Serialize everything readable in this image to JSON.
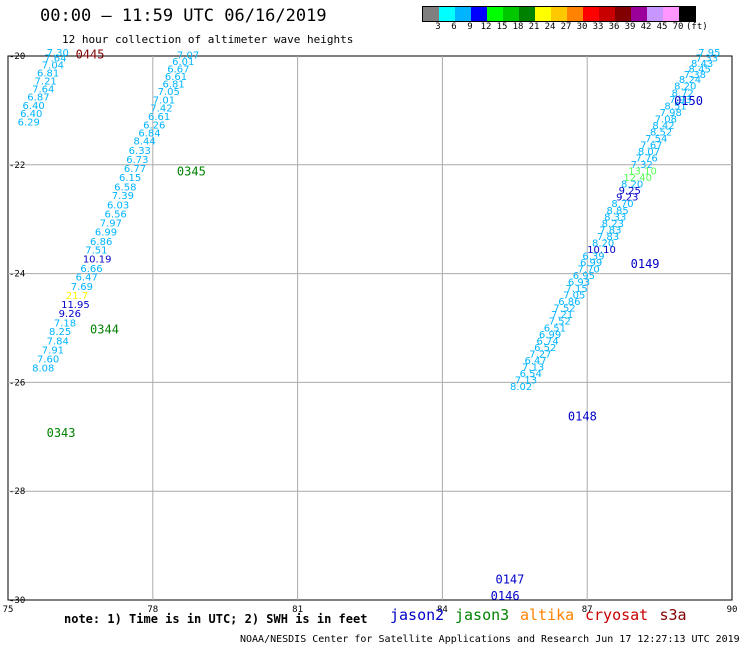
{
  "header": {
    "title": "00:00 – 11:59 UTC 06/16/2019",
    "subtitle": "12 hour collection of altimeter wave heights"
  },
  "legend": {
    "colors": [
      "#7f7f7f",
      "#00ffff",
      "#00b4ff",
      "#0000ff",
      "#00ff00",
      "#00c800",
      "#008200",
      "#ffff00",
      "#ffc800",
      "#ff8200",
      "#ff0000",
      "#c80000",
      "#820000",
      "#9b009b",
      "#c896ff",
      "#ff96ff",
      "#000000"
    ],
    "labels": [
      "3",
      "6",
      "9",
      "12",
      "15",
      "18",
      "21",
      "24",
      "27",
      "30",
      "33",
      "36",
      "39",
      "42",
      "45",
      "70",
      "(ft)"
    ]
  },
  "map": {
    "lon_range": [
      75,
      90
    ],
    "lat_range": [
      -30,
      -20
    ],
    "x_ticks": [
      "75",
      "78",
      "81",
      "84",
      "87",
      "90"
    ],
    "y_ticks": [
      "-20",
      "-22",
      "-24",
      "-26",
      "-28",
      "-30"
    ],
    "time_labels": [
      {
        "text": "0445",
        "lon": 76.4,
        "lat": -20.05,
        "color": "#800000"
      },
      {
        "text": "0345",
        "lon": 78.5,
        "lat": -22.2,
        "color": "#008200"
      },
      {
        "text": "0344",
        "lon": 76.7,
        "lat": -25.1,
        "color": "#008200"
      },
      {
        "text": "0343",
        "lon": 75.8,
        "lat": -27.0,
        "color": "#008200"
      },
      {
        "text": "0150",
        "lon": 88.8,
        "lat": -20.9,
        "color": "#0000c8"
      },
      {
        "text": "0149",
        "lon": 87.9,
        "lat": -23.9,
        "color": "#0000c8"
      },
      {
        "text": "0148",
        "lon": 86.6,
        "lat": -26.7,
        "color": "#0000c8"
      },
      {
        "text": "0147",
        "lon": 85.1,
        "lat": -29.7,
        "color": "#0000c8"
      },
      {
        "text": "0146",
        "lon": 85.0,
        "lat": -30.0,
        "color": "#0000c8"
      }
    ],
    "tracks": [
      {
        "points": [
          {
            "v": "7.30",
            "lon": 75.8,
            "lat": -20.0,
            "c": "#00b4ff"
          },
          {
            "v": "7.64",
            "lon": 75.75,
            "lat": -20.1,
            "c": "#00b4ff"
          },
          {
            "v": "7.04",
            "lon": 75.7,
            "lat": -20.23,
            "c": "#00b4ff"
          },
          {
            "v": "6.81",
            "lon": 75.6,
            "lat": -20.38,
            "c": "#00b4ff"
          },
          {
            "v": "7.21",
            "lon": 75.55,
            "lat": -20.52,
            "c": "#00b4ff"
          },
          {
            "v": "7.64",
            "lon": 75.5,
            "lat": -20.67,
            "c": "#00b4ff"
          },
          {
            "v": "6.87",
            "lon": 75.4,
            "lat": -20.82,
            "c": "#00b4ff"
          },
          {
            "v": "6.40",
            "lon": 75.3,
            "lat": -20.97,
            "c": "#00b4ff"
          },
          {
            "v": "6.40",
            "lon": 75.25,
            "lat": -21.12,
            "c": "#00b4ff"
          },
          {
            "v": "6.29",
            "lon": 75.2,
            "lat": -21.28,
            "c": "#00b4ff"
          }
        ]
      },
      {
        "points": [
          {
            "v": "7.07",
            "lon": 78.5,
            "lat": -20.05,
            "c": "#00b4ff"
          },
          {
            "v": "6.01",
            "lon": 78.4,
            "lat": -20.17,
            "c": "#00b4ff"
          },
          {
            "v": "6.67",
            "lon": 78.3,
            "lat": -20.3,
            "c": "#00b4ff"
          },
          {
            "v": "6.61",
            "lon": 78.25,
            "lat": -20.44,
            "c": "#00b4ff"
          },
          {
            "v": "6.81",
            "lon": 78.2,
            "lat": -20.58,
            "c": "#00b4ff"
          },
          {
            "v": "7.05",
            "lon": 78.1,
            "lat": -20.72,
            "c": "#00b4ff"
          },
          {
            "v": "7.01",
            "lon": 78.0,
            "lat": -20.87,
            "c": "#00b4ff"
          },
          {
            "v": "7.42",
            "lon": 77.95,
            "lat": -21.02,
            "c": "#00b4ff"
          },
          {
            "v": "6.61",
            "lon": 77.9,
            "lat": -21.18,
            "c": "#00b4ff"
          },
          {
            "v": "6.26",
            "lon": 77.8,
            "lat": -21.33,
            "c": "#00b4ff"
          },
          {
            "v": "6.84",
            "lon": 77.7,
            "lat": -21.48,
            "c": "#00b4ff"
          },
          {
            "v": "8.44",
            "lon": 77.6,
            "lat": -21.63,
            "c": "#00b4ff"
          },
          {
            "v": "6.33",
            "lon": 77.5,
            "lat": -21.8,
            "c": "#00b4ff"
          },
          {
            "v": "6.73",
            "lon": 77.45,
            "lat": -21.97,
            "c": "#00b4ff"
          },
          {
            "v": "6.77",
            "lon": 77.4,
            "lat": -22.13,
            "c": "#00b4ff"
          },
          {
            "v": "6.15",
            "lon": 77.3,
            "lat": -22.3,
            "c": "#00b4ff"
          },
          {
            "v": "6.58",
            "lon": 77.2,
            "lat": -22.47,
            "c": "#00b4ff"
          },
          {
            "v": "7.39",
            "lon": 77.15,
            "lat": -22.63,
            "c": "#00b4ff"
          },
          {
            "v": "6.03",
            "lon": 77.05,
            "lat": -22.8,
            "c": "#00b4ff"
          },
          {
            "v": "6.56",
            "lon": 77.0,
            "lat": -22.97,
            "c": "#00b4ff"
          },
          {
            "v": "7.97",
            "lon": 76.9,
            "lat": -23.13,
            "c": "#00b4ff"
          },
          {
            "v": "6.99",
            "lon": 76.8,
            "lat": -23.3,
            "c": "#00b4ff"
          },
          {
            "v": "6.86",
            "lon": 76.7,
            "lat": -23.47,
            "c": "#00b4ff"
          },
          {
            "v": "7.51",
            "lon": 76.6,
            "lat": -23.63,
            "c": "#00b4ff"
          },
          {
            "v": "10.19",
            "lon": 76.55,
            "lat": -23.8,
            "c": "#0000c8"
          },
          {
            "v": "6.66",
            "lon": 76.5,
            "lat": -23.97,
            "c": "#00b4ff"
          },
          {
            "v": "6.47",
            "lon": 76.4,
            "lat": -24.13,
            "c": "#00b4ff"
          },
          {
            "v": "7.69",
            "lon": 76.3,
            "lat": -24.3,
            "c": "#00b4ff"
          },
          {
            "v": "21.7",
            "lon": 76.2,
            "lat": -24.47,
            "c": "#ffff00"
          },
          {
            "v": "11.95",
            "lon": 76.1,
            "lat": -24.63,
            "c": "#0000c8"
          },
          {
            "v": "9.26",
            "lon": 76.05,
            "lat": -24.8,
            "c": "#0000c8"
          },
          {
            "v": "7.18",
            "lon": 75.95,
            "lat": -24.97,
            "c": "#00b4ff"
          },
          {
            "v": "8.25",
            "lon": 75.85,
            "lat": -25.13,
            "c": "#00b4ff"
          },
          {
            "v": "7.84",
            "lon": 75.8,
            "lat": -25.3,
            "c": "#00b4ff"
          },
          {
            "v": "7.91",
            "lon": 75.7,
            "lat": -25.47,
            "c": "#00b4ff"
          },
          {
            "v": "7.60",
            "lon": 75.6,
            "lat": -25.63,
            "c": "#00b4ff"
          },
          {
            "v": "8.08",
            "lon": 75.5,
            "lat": -25.8,
            "c": "#00b4ff"
          }
        ]
      },
      {
        "points": [
          {
            "v": "7.95",
            "lon": 89.3,
            "lat": -20.0,
            "c": "#00b4ff"
          },
          {
            "v": "7.33",
            "lon": 89.25,
            "lat": -20.1,
            "c": "#00b4ff"
          },
          {
            "v": "8.43",
            "lon": 89.15,
            "lat": -20.2,
            "c": "#00b4ff"
          },
          {
            "v": "8.45",
            "lon": 89.1,
            "lat": -20.3,
            "c": "#00b4ff"
          },
          {
            "v": "7.38",
            "lon": 89.0,
            "lat": -20.4,
            "c": "#00b4ff"
          },
          {
            "v": "8.24",
            "lon": 88.9,
            "lat": -20.5,
            "c": "#00b4ff"
          },
          {
            "v": "8.20",
            "lon": 88.8,
            "lat": -20.62,
            "c": "#00b4ff"
          },
          {
            "v": "8.72",
            "lon": 88.75,
            "lat": -20.74,
            "c": "#00b4ff"
          },
          {
            "v": "7.93",
            "lon": 88.7,
            "lat": -20.86,
            "c": "#00b4ff"
          },
          {
            "v": "8.51",
            "lon": 88.6,
            "lat": -20.98,
            "c": "#00b4ff"
          },
          {
            "v": "7.98",
            "lon": 88.5,
            "lat": -21.1,
            "c": "#00b4ff"
          },
          {
            "v": "7.08",
            "lon": 88.4,
            "lat": -21.22,
            "c": "#00b4ff"
          },
          {
            "v": "8.42",
            "lon": 88.35,
            "lat": -21.34,
            "c": "#00b4ff"
          },
          {
            "v": "8.52",
            "lon": 88.3,
            "lat": -21.46,
            "c": "#00b4ff"
          },
          {
            "v": "7.54",
            "lon": 88.2,
            "lat": -21.58,
            "c": "#00b4ff"
          },
          {
            "v": "7.67",
            "lon": 88.1,
            "lat": -21.7,
            "c": "#00b4ff"
          },
          {
            "v": "8.07",
            "lon": 88.05,
            "lat": -21.82,
            "c": "#00b4ff"
          },
          {
            "v": "7.76",
            "lon": 88.0,
            "lat": -21.94,
            "c": "#00b4ff"
          },
          {
            "v": "7.32",
            "lon": 87.9,
            "lat": -22.06,
            "c": "#00b4ff"
          },
          {
            "v": "13.10",
            "lon": 87.85,
            "lat": -22.18,
            "c": "#55ff55"
          },
          {
            "v": "12.40",
            "lon": 87.75,
            "lat": -22.3,
            "c": "#55ff55"
          },
          {
            "v": "8.20",
            "lon": 87.7,
            "lat": -22.42,
            "c": "#00b4ff"
          },
          {
            "v": "9.25",
            "lon": 87.65,
            "lat": -22.54,
            "c": "#0000c8"
          },
          {
            "v": "9.23",
            "lon": 87.6,
            "lat": -22.66,
            "c": "#0000c8"
          },
          {
            "v": "8.70",
            "lon": 87.5,
            "lat": -22.78,
            "c": "#00b4ff"
          },
          {
            "v": "8.85",
            "lon": 87.4,
            "lat": -22.9,
            "c": "#00b4ff"
          },
          {
            "v": "8.33",
            "lon": 87.35,
            "lat": -23.02,
            "c": "#00b4ff"
          },
          {
            "v": "8.23",
            "lon": 87.3,
            "lat": -23.14,
            "c": "#00b4ff"
          },
          {
            "v": "7.83",
            "lon": 87.25,
            "lat": -23.26,
            "c": "#00b4ff"
          },
          {
            "v": "7.83",
            "lon": 87.2,
            "lat": -23.38,
            "c": "#00b4ff"
          },
          {
            "v": "8.20",
            "lon": 87.1,
            "lat": -23.5,
            "c": "#00b4ff"
          },
          {
            "v": "10.10",
            "lon": 87.0,
            "lat": -23.62,
            "c": "#0000c8"
          },
          {
            "v": "6.39",
            "lon": 86.9,
            "lat": -23.74,
            "c": "#00b4ff"
          },
          {
            "v": "6.99",
            "lon": 86.85,
            "lat": -23.86,
            "c": "#00b4ff"
          },
          {
            "v": "7.70",
            "lon": 86.8,
            "lat": -23.98,
            "c": "#00b4ff"
          },
          {
            "v": "6.95",
            "lon": 86.7,
            "lat": -24.1,
            "c": "#00b4ff"
          },
          {
            "v": "6.93",
            "lon": 86.6,
            "lat": -24.22,
            "c": "#00b4ff"
          },
          {
            "v": "7.15",
            "lon": 86.55,
            "lat": -24.34,
            "c": "#00b4ff"
          },
          {
            "v": "7.05",
            "lon": 86.5,
            "lat": -24.46,
            "c": "#00b4ff"
          },
          {
            "v": "6.86",
            "lon": 86.4,
            "lat": -24.58,
            "c": "#00b4ff"
          },
          {
            "v": "7.52",
            "lon": 86.3,
            "lat": -24.7,
            "c": "#00b4ff"
          },
          {
            "v": "7.21",
            "lon": 86.25,
            "lat": -24.82,
            "c": "#00b4ff"
          },
          {
            "v": "7.52",
            "lon": 86.2,
            "lat": -24.94,
            "c": "#00b4ff"
          },
          {
            "v": "6.51",
            "lon": 86.1,
            "lat": -25.06,
            "c": "#00b4ff"
          },
          {
            "v": "6.99",
            "lon": 86.0,
            "lat": -25.18,
            "c": "#00b4ff"
          },
          {
            "v": "6.74",
            "lon": 85.95,
            "lat": -25.3,
            "c": "#00b4ff"
          },
          {
            "v": "6.52",
            "lon": 85.9,
            "lat": -25.42,
            "c": "#00b4ff"
          },
          {
            "v": "7.27",
            "lon": 85.8,
            "lat": -25.54,
            "c": "#00b4ff"
          },
          {
            "v": "6.47",
            "lon": 85.7,
            "lat": -25.66,
            "c": "#00b4ff"
          },
          {
            "v": "7.13",
            "lon": 85.65,
            "lat": -25.78,
            "c": "#00b4ff"
          },
          {
            "v": "6.54",
            "lon": 85.6,
            "lat": -25.9,
            "c": "#00b4ff"
          },
          {
            "v": "7.13",
            "lon": 85.5,
            "lat": -26.02,
            "c": "#00b4ff"
          },
          {
            "v": "8.02",
            "lon": 85.4,
            "lat": -26.14,
            "c": "#00b4ff"
          }
        ]
      }
    ]
  },
  "footer": {
    "note": "note: 1) Time is in UTC; 2) SWH is in feet",
    "satellites": [
      {
        "name": "jason2",
        "color": "#0000c8"
      },
      {
        "name": "jason3",
        "color": "#008200"
      },
      {
        "name": "altika",
        "color": "#ff8200"
      },
      {
        "name": "cryosat",
        "color": "#c80000"
      },
      {
        "name": "s3a",
        "color": "#820000"
      }
    ],
    "credit": "NOAA/NESDIS Center for Satellite Applications and Research   Jun 17 12:27:13 UTC 2019"
  }
}
